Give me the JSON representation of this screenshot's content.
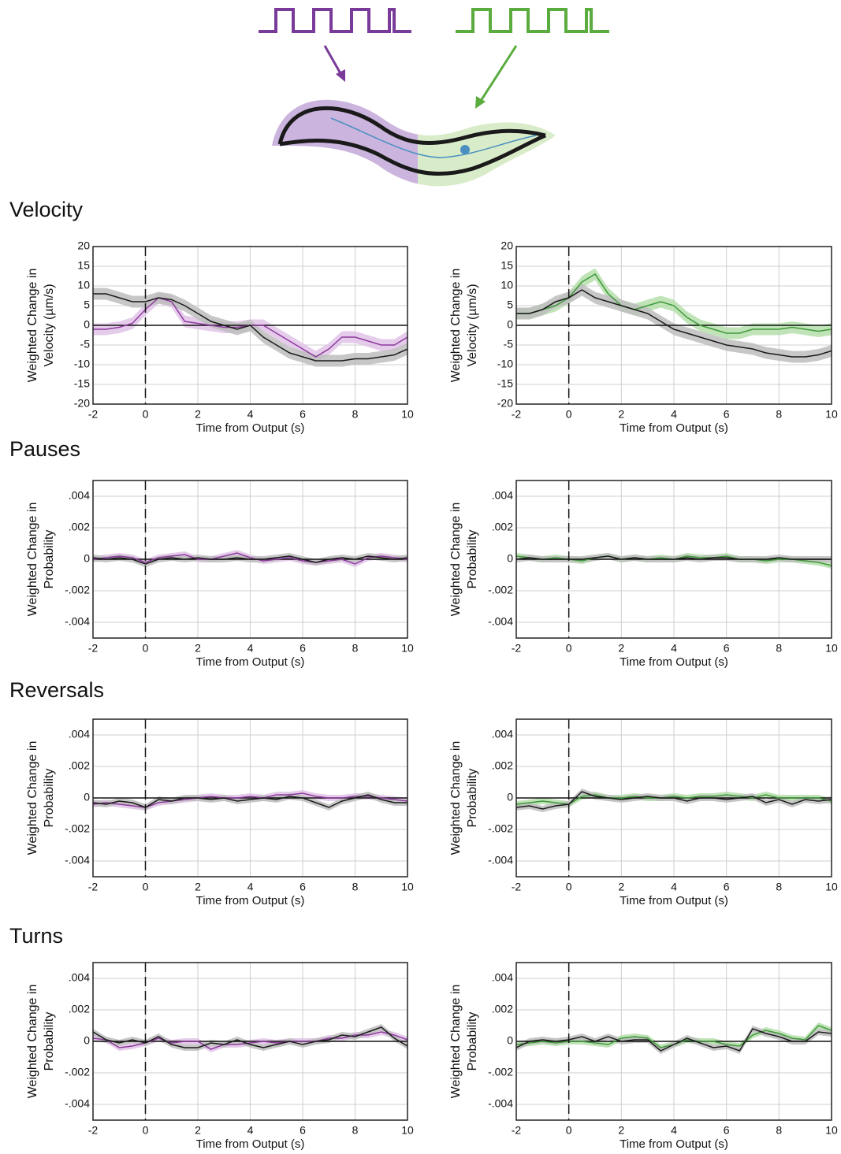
{
  "chart_data": [
    {
      "type": "line",
      "title": "Velocity",
      "ylabel": [
        "Weighted Change in",
        "Velocity (µm/s)"
      ],
      "xlabel": "Time from Output (s)",
      "x": [
        -2,
        -1.5,
        -1,
        -0.5,
        0,
        0.5,
        1,
        1.5,
        2,
        2.5,
        3,
        3.5,
        4,
        4.5,
        5,
        5.5,
        6,
        6.5,
        7,
        7.5,
        8,
        8.5,
        9,
        9.5,
        10
      ],
      "xlim": [
        -2,
        10
      ],
      "xticks": [
        -2,
        0,
        2,
        4,
        6,
        8,
        10
      ],
      "ylim": [
        -20,
        20
      ],
      "yticks": [
        -20,
        -15,
        -10,
        -5,
        0,
        5,
        10,
        15,
        20
      ],
      "grid": true,
      "vline": 0,
      "series": [
        {
          "color": "#8e3a9e",
          "band_color": "#e0c3e8",
          "error": 1.5,
          "values": [
            -1,
            -1,
            -0.5,
            0.5,
            4,
            7,
            6,
            1,
            0.5,
            0,
            -0.5,
            -0.5,
            0,
            0,
            -2,
            -4,
            -6,
            -8,
            -6,
            -3,
            -3,
            -4,
            -5,
            -5,
            -3
          ]
        },
        {
          "color": "#1a1a1a",
          "band_color": "#bdbdbd",
          "error": 1.5,
          "values": [
            8,
            8,
            7,
            6,
            6,
            7,
            6.5,
            5,
            3,
            1,
            0,
            -1,
            0,
            -3,
            -5,
            -7,
            -8,
            -9,
            -9,
            -9,
            -8.5,
            -8.5,
            -8,
            -7.5,
            -6
          ]
        }
      ]
    },
    {
      "type": "line",
      "ylabel": [
        "Weighted Change in",
        "Velocity (µm/s)"
      ],
      "xlabel": "Time from Output (s)",
      "x": [
        -2,
        -1.5,
        -1,
        -0.5,
        0,
        0.5,
        1,
        1.5,
        2,
        2.5,
        3,
        3.5,
        4,
        4.5,
        5,
        5.5,
        6,
        6.5,
        7,
        7.5,
        8,
        8.5,
        9,
        9.5,
        10
      ],
      "xlim": [
        -2,
        10
      ],
      "xticks": [
        -2,
        0,
        2,
        4,
        6,
        8,
        10
      ],
      "ylim": [
        -20,
        20
      ],
      "yticks": [
        -20,
        -15,
        -10,
        -5,
        0,
        5,
        10,
        15,
        20
      ],
      "grid": true,
      "vline": 0,
      "series": [
        {
          "color": "#3f9a3a",
          "band_color": "#b5deac",
          "error": 1.5,
          "values": [
            3,
            3,
            4,
            5,
            7,
            11,
            13,
            8,
            5,
            4,
            5,
            6,
            5,
            2,
            0,
            -1,
            -2,
            -2,
            -1,
            -1,
            -1,
            -0.5,
            -1,
            -1.5,
            -1
          ]
        },
        {
          "color": "#1a1a1a",
          "band_color": "#bdbdbd",
          "error": 1.5,
          "values": [
            3,
            3,
            4,
            6,
            7,
            9,
            7,
            6,
            5,
            4,
            3,
            1,
            -1,
            -2,
            -3,
            -4,
            -5,
            -5.5,
            -6,
            -7,
            -7.5,
            -8,
            -8,
            -7.5,
            -6.5
          ]
        }
      ]
    },
    {
      "type": "line",
      "title": "Pauses",
      "ylabel": [
        "Weighted Change in",
        "Probability"
      ],
      "xlabel": "Time from Output (s)",
      "x": [
        -2,
        -1.5,
        -1,
        -0.5,
        0,
        0.5,
        1,
        1.5,
        2,
        2.5,
        3,
        3.5,
        4,
        4.5,
        5,
        5.5,
        6,
        6.5,
        7,
        7.5,
        8,
        8.5,
        9,
        9.5,
        10
      ],
      "xlim": [
        -2,
        10
      ],
      "xticks": [
        -2,
        0,
        2,
        4,
        6,
        8,
        10
      ],
      "ylim": [
        -0.005,
        0.005
      ],
      "yticks": [
        {
          "value": -0.004,
          "label": "-.004"
        },
        {
          "value": -0.002,
          "label": "-.002"
        },
        0,
        {
          "value": 0.002,
          "label": ".002"
        },
        {
          "value": 0.004,
          "label": ".004"
        }
      ],
      "grid": true,
      "vline": 0,
      "series": [
        {
          "color": "#8e3a9e",
          "band_color": "#e0c3e8",
          "error": 0.0002,
          "values": [
            0,
            0.0001,
            0.0002,
            0.0001,
            -0.0002,
            0.0001,
            0.0002,
            0.0003,
            0,
            0,
            0.0002,
            0.0004,
            0.0001,
            -0.0001,
            0,
            0.0001,
            -0.0001,
            -0.0002,
            -0.0001,
            0,
            -0.0003,
            0.0001,
            0.0002,
            0.0001,
            0
          ]
        },
        {
          "color": "#1a1a1a",
          "band_color": "#bdbdbd",
          "error": 0.0002,
          "values": [
            0.0001,
            0,
            0.0001,
            0,
            -0.0003,
            0,
            0.0001,
            0,
            0.0001,
            0,
            0,
            0.0001,
            0,
            0,
            0.0001,
            0.0002,
            0,
            -0.0002,
            0,
            0.0001,
            0,
            0.0002,
            0.0001,
            0,
            0.0001
          ]
        }
      ]
    },
    {
      "type": "line",
      "ylabel": [
        "Weighted Change in",
        "Probability"
      ],
      "xlabel": "Time from Output (s)",
      "x": [
        -2,
        -1.5,
        -1,
        -0.5,
        0,
        0.5,
        1,
        1.5,
        2,
        2.5,
        3,
        3.5,
        4,
        4.5,
        5,
        5.5,
        6,
        6.5,
        7,
        7.5,
        8,
        8.5,
        9,
        9.5,
        10
      ],
      "xlim": [
        -2,
        10
      ],
      "xticks": [
        -2,
        0,
        2,
        4,
        6,
        8,
        10
      ],
      "ylim": [
        -0.005,
        0.005
      ],
      "yticks": [
        {
          "value": -0.004,
          "label": "-.004"
        },
        {
          "value": -0.002,
          "label": "-.002"
        },
        0,
        {
          "value": 0.002,
          "label": ".002"
        },
        {
          "value": 0.004,
          "label": ".004"
        }
      ],
      "grid": true,
      "vline": 0,
      "series": [
        {
          "color": "#3f9a3a",
          "band_color": "#b5deac",
          "error": 0.0002,
          "values": [
            0.0002,
            0.0001,
            0,
            0.0001,
            0,
            -0.0001,
            0.0001,
            0.0002,
            0,
            0.0001,
            0,
            0.0001,
            0,
            0.0002,
            0.0001,
            0.0001,
            0.0002,
            0,
            0,
            -0.0001,
            0,
            0,
            -0.0001,
            -0.0002,
            -0.0004
          ]
        },
        {
          "color": "#1a1a1a",
          "band_color": "#bdbdbd",
          "error": 0.0002,
          "values": [
            0,
            0.0001,
            0,
            0,
            0,
            0,
            0.0001,
            0.0002,
            0,
            0.0001,
            0,
            0,
            0,
            0.0001,
            0,
            0.0001,
            0.0001,
            0,
            0,
            0,
            0.0001,
            0,
            0,
            0,
            0
          ]
        }
      ]
    },
    {
      "type": "line",
      "title": "Reversals",
      "ylabel": [
        "Weighted Change in",
        "Probability"
      ],
      "xlabel": "Time from Output (s)",
      "x": [
        -2,
        -1.5,
        -1,
        -0.5,
        0,
        0.5,
        1,
        1.5,
        2,
        2.5,
        3,
        3.5,
        4,
        4.5,
        5,
        5.5,
        6,
        6.5,
        7,
        7.5,
        8,
        8.5,
        9,
        9.5,
        10
      ],
      "xlim": [
        -2,
        10
      ],
      "xticks": [
        -2,
        0,
        2,
        4,
        6,
        8,
        10
      ],
      "ylim": [
        -0.005,
        0.005
      ],
      "yticks": [
        {
          "value": -0.004,
          "label": "-.004"
        },
        {
          "value": -0.002,
          "label": "-.002"
        },
        0,
        {
          "value": 0.002,
          "label": ".002"
        },
        {
          "value": 0.004,
          "label": ".004"
        }
      ],
      "grid": true,
      "vline": 0,
      "series": [
        {
          "color": "#8e3a9e",
          "band_color": "#e0c3e8",
          "error": 0.0002,
          "values": [
            -0.0004,
            -0.0003,
            -0.0004,
            -0.0005,
            -0.0006,
            -0.0003,
            -0.0002,
            -0.0001,
            0,
            0.0001,
            0,
            0,
            0.0001,
            0,
            0.0002,
            0.0002,
            0.0003,
            0.0001,
            0,
            0,
            0.0001,
            0.0001,
            0,
            -0.0001,
            -0.0002
          ]
        },
        {
          "color": "#1a1a1a",
          "band_color": "#bdbdbd",
          "error": 0.0002,
          "values": [
            -0.0003,
            -0.0004,
            -0.0002,
            -0.0003,
            -0.0006,
            -0.0001,
            -0.0002,
            0,
            0,
            -0.0001,
            0,
            -0.0002,
            -0.0001,
            0,
            -0.0001,
            0.0001,
            0,
            -0.0003,
            -0.0006,
            -0.0002,
            0,
            0.0002,
            -0.0001,
            -0.0003,
            -0.0003
          ]
        }
      ]
    },
    {
      "type": "line",
      "ylabel": [
        "Weighted Change in",
        "Probability"
      ],
      "xlabel": "Time from Output (s)",
      "x": [
        -2,
        -1.5,
        -1,
        -0.5,
        0,
        0.5,
        1,
        1.5,
        2,
        2.5,
        3,
        3.5,
        4,
        4.5,
        5,
        5.5,
        6,
        6.5,
        7,
        7.5,
        8,
        8.5,
        9,
        9.5,
        10
      ],
      "xlim": [
        -2,
        10
      ],
      "xticks": [
        -2,
        0,
        2,
        4,
        6,
        8,
        10
      ],
      "ylim": [
        -0.005,
        0.005
      ],
      "yticks": [
        {
          "value": -0.004,
          "label": "-.004"
        },
        {
          "value": -0.002,
          "label": "-.002"
        },
        0,
        {
          "value": 0.002,
          "label": ".002"
        },
        {
          "value": 0.004,
          "label": ".004"
        }
      ],
      "grid": true,
      "vline": 0,
      "series": [
        {
          "color": "#3f9a3a",
          "band_color": "#b5deac",
          "error": 0.0002,
          "values": [
            -0.0004,
            -0.0003,
            -0.0002,
            -0.0003,
            -0.0004,
            0.0001,
            0.0002,
            0,
            0,
            0.0001,
            0,
            0,
            0.0001,
            0,
            0.0001,
            0.0001,
            0.0002,
            0.0001,
            0,
            0.0002,
            0,
            0,
            0,
            0,
            -0.0002
          ]
        },
        {
          "color": "#1a1a1a",
          "band_color": "#bdbdbd",
          "error": 0.0002,
          "values": [
            -0.0006,
            -0.0005,
            -0.0007,
            -0.0005,
            -0.0004,
            0.0004,
            0.0001,
            0,
            -0.0001,
            0,
            0.0001,
            0,
            0,
            -0.0002,
            0,
            0,
            -0.0001,
            0,
            0.0001,
            -0.0003,
            -0.0001,
            -0.0004,
            -0.0001,
            -0.0002,
            -0.0001
          ]
        }
      ]
    },
    {
      "type": "line",
      "title": "Turns",
      "ylabel": [
        "Weighted Change in",
        "Probability"
      ],
      "xlabel": "Time from Output (s)",
      "x": [
        -2,
        -1.5,
        -1,
        -0.5,
        0,
        0.5,
        1,
        1.5,
        2,
        2.5,
        3,
        3.5,
        4,
        4.5,
        5,
        5.5,
        6,
        6.5,
        7,
        7.5,
        8,
        8.5,
        9,
        9.5,
        10
      ],
      "xlim": [
        -2,
        10
      ],
      "xticks": [
        -2,
        0,
        2,
        4,
        6,
        8,
        10
      ],
      "ylim": [
        -0.005,
        0.005
      ],
      "yticks": [
        {
          "value": -0.004,
          "label": "-.004"
        },
        {
          "value": -0.002,
          "label": "-.002"
        },
        0,
        {
          "value": 0.002,
          "label": ".002"
        },
        {
          "value": 0.004,
          "label": ".004"
        }
      ],
      "grid": true,
      "vline": 0,
      "series": [
        {
          "color": "#8e3a9e",
          "band_color": "#e0c3e8",
          "error": 0.0002,
          "values": [
            0.0002,
            0.0001,
            -0.0004,
            -0.0003,
            -0.0001,
            0.0002,
            -0.0001,
            0,
            0,
            -0.0005,
            -0.0002,
            -0.0002,
            -0.0001,
            0,
            -0.0001,
            0,
            0,
            0,
            0.0002,
            0.0002,
            0.0004,
            0.0004,
            0.0006,
            0.0004,
            0.0001
          ]
        },
        {
          "color": "#1a1a1a",
          "band_color": "#bdbdbd",
          "error": 0.0002,
          "values": [
            0.0006,
            0.0001,
            -0.0001,
            0.0001,
            -0.0001,
            0.0003,
            -0.0002,
            -0.0004,
            -0.0004,
            -0.0001,
            -0.0002,
            0.0001,
            -0.0002,
            -0.0004,
            -0.0002,
            0,
            -0.0002,
            0,
            0.0001,
            0.0004,
            0.0003,
            0.0006,
            0.0009,
            0.0002,
            -0.0003
          ]
        }
      ]
    },
    {
      "type": "line",
      "ylabel": [
        "Weighted Change in",
        "Probability"
      ],
      "xlabel": "Time from Output (s)",
      "x": [
        -2,
        -1.5,
        -1,
        -0.5,
        0,
        0.5,
        1,
        1.5,
        2,
        2.5,
        3,
        3.5,
        4,
        4.5,
        5,
        5.5,
        6,
        6.5,
        7,
        7.5,
        8,
        8.5,
        9,
        9.5,
        10
      ],
      "xlim": [
        -2,
        10
      ],
      "xticks": [
        -2,
        0,
        2,
        4,
        6,
        8,
        10
      ],
      "ylim": [
        -0.005,
        0.005
      ],
      "yticks": [
        {
          "value": -0.004,
          "label": "-.004"
        },
        {
          "value": -0.002,
          "label": "-.002"
        },
        0,
        {
          "value": 0.002,
          "label": ".002"
        },
        {
          "value": 0.004,
          "label": ".004"
        }
      ],
      "grid": true,
      "vline": 0,
      "series": [
        {
          "color": "#3f9a3a",
          "band_color": "#b5deac",
          "error": 0.0002,
          "values": [
            -0.0002,
            -0.0001,
            0,
            -0.0001,
            0,
            0,
            -0.0001,
            -0.0002,
            0.0002,
            0.0003,
            0.0002,
            -0.0004,
            -0.0002,
            0.0001,
            0,
            0,
            -0.0002,
            -0.0003,
            0.0004,
            0.0007,
            0.0005,
            0.0002,
            0.0001,
            0.001,
            0.0007
          ]
        },
        {
          "color": "#1a1a1a",
          "band_color": "#bdbdbd",
          "error": 0.0002,
          "values": [
            -0.0004,
            0,
            0.0001,
            0,
            0.0001,
            0.0003,
            0,
            0.0003,
            0,
            0.0001,
            0.0001,
            -0.0006,
            -0.0002,
            0.0002,
            -0.0001,
            -0.0004,
            -0.0003,
            -0.0006,
            0.0008,
            0.0005,
            0.0003,
            0,
            0,
            0.0006,
            0.0005
          ]
        }
      ]
    }
  ]
}
